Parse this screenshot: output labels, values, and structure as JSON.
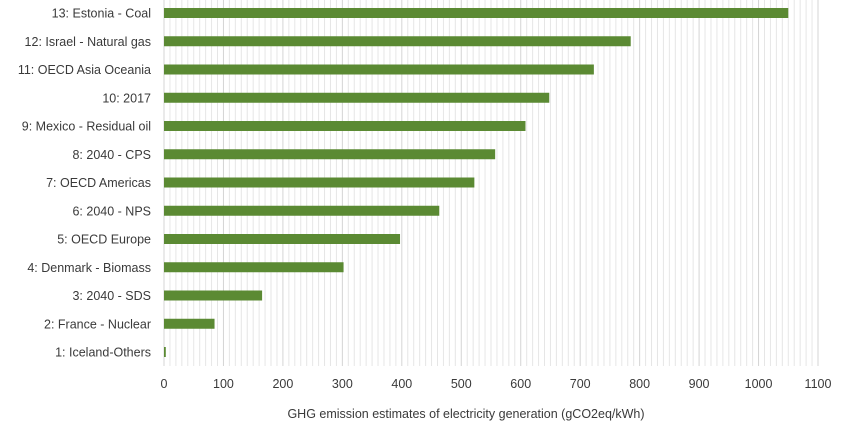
{
  "chart_data": {
    "type": "bar",
    "orientation": "horizontal",
    "title": "",
    "xlabel": "GHG emission estimates of electricity generation (gCO2eq/kWh)",
    "ylabel": "",
    "xlim": [
      0,
      1100
    ],
    "x_ticks": [
      0,
      100,
      200,
      300,
      400,
      500,
      600,
      700,
      800,
      900,
      1000,
      1100
    ],
    "grid": "vertical minor gridlines every 10",
    "bar_color": "#5b8a33",
    "categories": [
      "13: Estonia - Coal",
      "12: Israel - Natural gas",
      "11: OECD Asia Oceania",
      "10: 2017",
      "9: Mexico - Residual oil",
      "8: 2040 - CPS",
      "7: OECD Americas",
      "6: 2040 - NPS",
      "5: OECD Europe",
      "4: Denmark - Biomass",
      "3: 2040 - SDS",
      "2: France - Nuclear",
      "1: Iceland-Others"
    ],
    "values": [
      1050,
      785,
      723,
      648,
      608,
      557,
      522,
      463,
      397,
      302,
      165,
      85,
      3
    ]
  }
}
